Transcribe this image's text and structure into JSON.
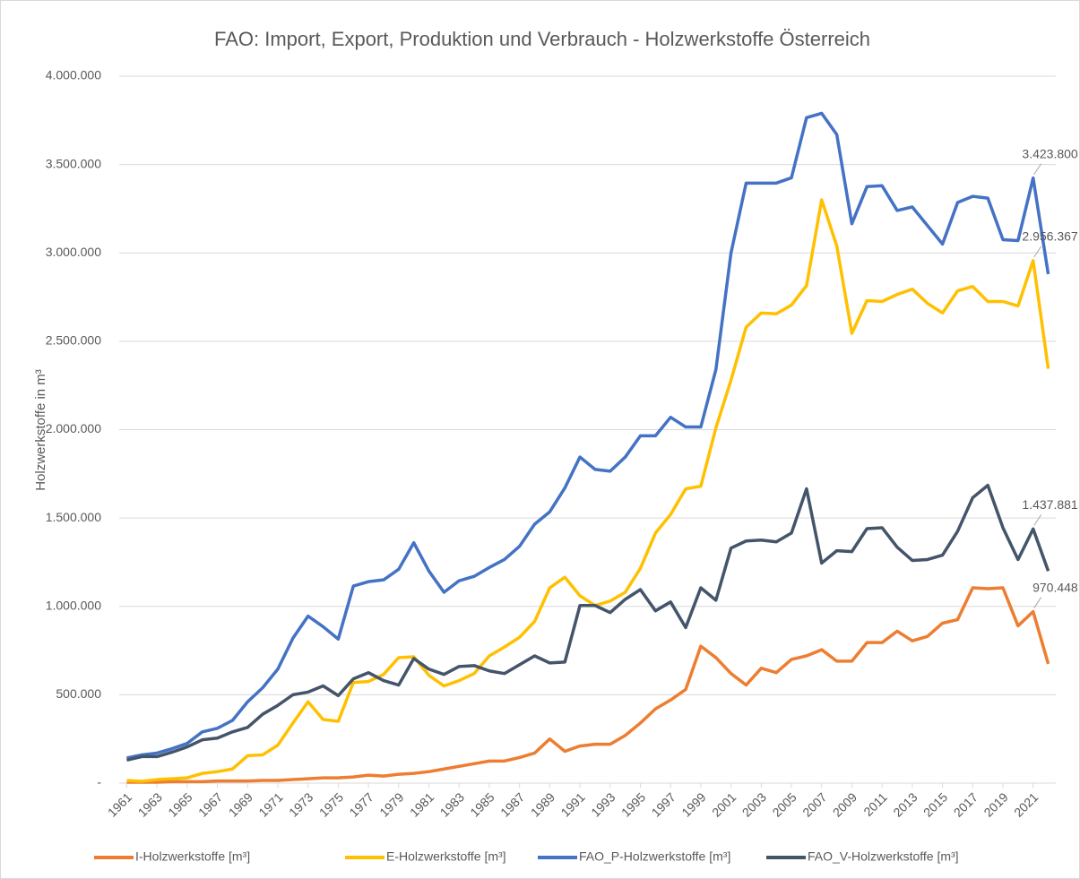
{
  "chart_data": {
    "type": "line",
    "title": "FAO: Import, Export, Produktion und Verbrauch - Holzwerkstoffe Österreich",
    "ylabel": "Holzwerkstoffe in m³",
    "x": [
      1961,
      1962,
      1963,
      1964,
      1965,
      1966,
      1967,
      1968,
      1969,
      1970,
      1971,
      1972,
      1973,
      1974,
      1975,
      1976,
      1977,
      1978,
      1979,
      1980,
      1981,
      1982,
      1983,
      1984,
      1985,
      1986,
      1987,
      1988,
      1989,
      1990,
      1991,
      1992,
      1993,
      1994,
      1995,
      1996,
      1997,
      1998,
      1999,
      2000,
      2001,
      2002,
      2003,
      2004,
      2005,
      2006,
      2007,
      2008,
      2009,
      2010,
      2011,
      2012,
      2013,
      2014,
      2015,
      2016,
      2017,
      2018,
      2019,
      2020,
      2021,
      2022
    ],
    "xlim": [
      1960.5,
      2022.5
    ],
    "xticks": [
      1961,
      1963,
      1965,
      1967,
      1969,
      1971,
      1973,
      1975,
      1977,
      1979,
      1981,
      1983,
      1985,
      1987,
      1989,
      1991,
      1993,
      1995,
      1997,
      1999,
      2001,
      2003,
      2005,
      2007,
      2009,
      2011,
      2013,
      2015,
      2017,
      2019,
      2021
    ],
    "ylim": [
      0,
      4000000
    ],
    "yticks": [
      {
        "value": 0,
        "label": "-"
      },
      {
        "value": 500000,
        "label": "500.000"
      },
      {
        "value": 1000000,
        "label": "1.000.000"
      },
      {
        "value": 1500000,
        "label": "1.500.000"
      },
      {
        "value": 2000000,
        "label": "2.000.000"
      },
      {
        "value": 2500000,
        "label": "2.500.000"
      },
      {
        "value": 3000000,
        "label": "3.000.000"
      },
      {
        "value": 3500000,
        "label": "3.500.000"
      },
      {
        "value": 4000000,
        "label": "4.000.000"
      }
    ],
    "grid": true,
    "legend": "bottom",
    "series": [
      {
        "name": "I-Holzwerkstoffe [m³]",
        "color": "#ed7d31",
        "values": [
          5000,
          5000,
          5000,
          8000,
          8000,
          8000,
          12000,
          12000,
          12000,
          15000,
          15000,
          20000,
          25000,
          30000,
          30000,
          35000,
          45000,
          40000,
          50000,
          55000,
          65000,
          80000,
          95000,
          110000,
          125000,
          125000,
          145000,
          170000,
          250000,
          180000,
          210000,
          220000,
          220000,
          270000,
          340000,
          420000,
          470000,
          530000,
          775000,
          710000,
          620000,
          555000,
          650000,
          625000,
          700000,
          720000,
          755000,
          690000,
          690000,
          795000,
          795000,
          860000,
          805000,
          830000,
          905000,
          925000,
          1105000,
          1100000,
          1105000,
          890000,
          970448,
          675000
        ],
        "value_labels": [
          null,
          null,
          null,
          null,
          null,
          null,
          null,
          null,
          null,
          null,
          null,
          null,
          null,
          null,
          null,
          null,
          null,
          null,
          null,
          null,
          null,
          null,
          null,
          null,
          null,
          null,
          null,
          null,
          null,
          null,
          null,
          null,
          null,
          null,
          null,
          null,
          null,
          null,
          null,
          null,
          null,
          null,
          null,
          null,
          null,
          null,
          null,
          null,
          null,
          null,
          null,
          null,
          null,
          null,
          null,
          null,
          null,
          null,
          null,
          null,
          "970.448",
          null
        ]
      },
      {
        "name": "E-Holzwerkstoffe [m³]",
        "color": "#ffc000",
        "values": [
          15000,
          10000,
          20000,
          25000,
          30000,
          55000,
          65000,
          80000,
          155000,
          160000,
          215000,
          340000,
          460000,
          360000,
          350000,
          570000,
          575000,
          615000,
          710000,
          715000,
          610000,
          550000,
          580000,
          620000,
          720000,
          770000,
          825000,
          915000,
          1105000,
          1165000,
          1060000,
          1005000,
          1030000,
          1080000,
          1215000,
          1415000,
          1520000,
          1665000,
          1680000,
          2010000,
          2280000,
          2580000,
          2660000,
          2655000,
          2705000,
          2815000,
          3300000,
          3040000,
          2545000,
          2730000,
          2725000,
          2765000,
          2795000,
          2715000,
          2660000,
          2785000,
          2810000,
          2725000,
          2725000,
          2700000,
          2956367,
          2345000
        ],
        "value_labels": [
          null,
          null,
          null,
          null,
          null,
          null,
          null,
          null,
          null,
          null,
          null,
          null,
          null,
          null,
          null,
          null,
          null,
          null,
          null,
          null,
          null,
          null,
          null,
          null,
          null,
          null,
          null,
          null,
          null,
          null,
          null,
          null,
          null,
          null,
          null,
          null,
          null,
          null,
          null,
          null,
          null,
          null,
          null,
          null,
          null,
          null,
          null,
          null,
          null,
          null,
          null,
          null,
          null,
          null,
          null,
          null,
          null,
          null,
          null,
          null,
          "2.956.367",
          null
        ]
      },
      {
        "name": "FAO_P-Holzwerkstoffe [m³]",
        "color": "#4472c4",
        "values": [
          142000,
          160000,
          170000,
          195000,
          225000,
          290000,
          310000,
          355000,
          460000,
          540000,
          645000,
          820000,
          945000,
          885000,
          815000,
          1115000,
          1140000,
          1150000,
          1210000,
          1360000,
          1200000,
          1080000,
          1145000,
          1170000,
          1220000,
          1265000,
          1340000,
          1465000,
          1535000,
          1670000,
          1845000,
          1775000,
          1765000,
          1845000,
          1965000,
          1965000,
          2070000,
          2015000,
          2015000,
          2340000,
          3000000,
          3395000,
          3395000,
          3395000,
          3425000,
          3765000,
          3790000,
          3670000,
          3165000,
          3375000,
          3380000,
          3240000,
          3260000,
          3155000,
          3050000,
          3285000,
          3320000,
          3310000,
          3075000,
          3070000,
          3423800,
          2880000
        ],
        "value_labels": [
          null,
          null,
          null,
          null,
          null,
          null,
          null,
          null,
          null,
          null,
          null,
          null,
          null,
          null,
          null,
          null,
          null,
          null,
          null,
          null,
          null,
          null,
          null,
          null,
          null,
          null,
          null,
          null,
          null,
          null,
          null,
          null,
          null,
          null,
          null,
          null,
          null,
          null,
          null,
          null,
          null,
          null,
          null,
          null,
          null,
          null,
          null,
          null,
          null,
          null,
          null,
          null,
          null,
          null,
          null,
          null,
          null,
          null,
          null,
          null,
          "3.423.800",
          null
        ]
      },
      {
        "name": "FAO_V-Holzwerkstoffe [m³]",
        "color": "#44546a",
        "values": [
          130000,
          150000,
          150000,
          175000,
          205000,
          245000,
          255000,
          290000,
          315000,
          390000,
          440000,
          500000,
          515000,
          550000,
          495000,
          590000,
          625000,
          580000,
          555000,
          705000,
          645000,
          615000,
          660000,
          665000,
          635000,
          620000,
          670000,
          720000,
          680000,
          685000,
          1005000,
          1005000,
          965000,
          1040000,
          1095000,
          975000,
          1025000,
          880000,
          1105000,
          1035000,
          1330000,
          1370000,
          1375000,
          1365000,
          1415000,
          1665000,
          1245000,
          1315000,
          1310000,
          1440000,
          1445000,
          1335000,
          1260000,
          1265000,
          1290000,
          1425000,
          1615000,
          1685000,
          1445000,
          1265000,
          1437881,
          1200000
        ],
        "value_labels": [
          null,
          null,
          null,
          null,
          null,
          null,
          null,
          null,
          null,
          null,
          null,
          null,
          null,
          null,
          null,
          null,
          null,
          null,
          null,
          null,
          null,
          null,
          null,
          null,
          null,
          null,
          null,
          null,
          null,
          null,
          null,
          null,
          null,
          null,
          null,
          null,
          null,
          null,
          null,
          null,
          null,
          null,
          null,
          null,
          null,
          null,
          null,
          null,
          null,
          null,
          null,
          null,
          null,
          null,
          null,
          null,
          null,
          null,
          null,
          null,
          "1.437.881",
          null
        ]
      }
    ]
  }
}
